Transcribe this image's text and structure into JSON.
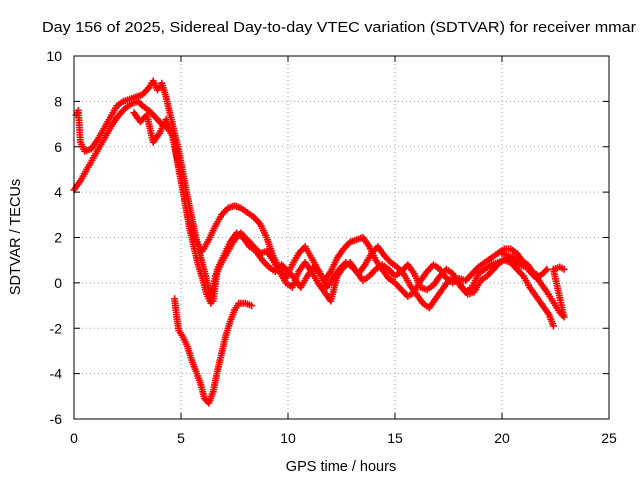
{
  "chart_data": {
    "type": "scatter",
    "title": "Day 156 of 2025, Sidereal Day-to-day VTEC variation (SDTVAR) for receiver mmar",
    "xlabel": "GPS time / hours",
    "ylabel": "SDTVAR / TECUs",
    "xlim": [
      0,
      25
    ],
    "ylim": [
      -6,
      10
    ],
    "xticks": [
      0,
      5,
      10,
      15,
      20,
      25
    ],
    "yticks": [
      -6,
      -4,
      -2,
      0,
      2,
      4,
      6,
      8,
      10
    ],
    "grid": true,
    "marker": "+",
    "series": [
      {
        "name": "trace-a",
        "color": "#ff0000",
        "points": [
          [
            0.0,
            4.1
          ],
          [
            0.3,
            4.5
          ],
          [
            0.6,
            5.0
          ],
          [
            0.9,
            5.5
          ],
          [
            1.2,
            6.0
          ],
          [
            1.5,
            6.5
          ],
          [
            1.8,
            7.0
          ],
          [
            2.1,
            7.4
          ],
          [
            2.4,
            7.7
          ],
          [
            2.7,
            7.9
          ],
          [
            3.0,
            8.0
          ],
          [
            3.2,
            7.8
          ],
          [
            3.5,
            7.6
          ],
          [
            3.8,
            7.3
          ],
          [
            4.1,
            7.0
          ],
          [
            4.4,
            6.8
          ],
          [
            4.7,
            6.3
          ],
          [
            4.9,
            5.0
          ],
          [
            5.1,
            4.0
          ],
          [
            5.3,
            3.0
          ],
          [
            5.5,
            2.3
          ],
          [
            5.8,
            1.7
          ],
          [
            6.0,
            1.4
          ],
          [
            6.3,
            1.9
          ],
          [
            6.6,
            2.5
          ],
          [
            6.9,
            3.0
          ],
          [
            7.2,
            3.3
          ],
          [
            7.5,
            3.4
          ],
          [
            7.8,
            3.3
          ],
          [
            8.1,
            3.1
          ],
          [
            8.4,
            2.9
          ],
          [
            8.7,
            2.6
          ],
          [
            9.0,
            2.0
          ],
          [
            9.3,
            1.2
          ],
          [
            9.6,
            0.6
          ],
          [
            9.9,
            0.2
          ],
          [
            10.2,
            0.8
          ],
          [
            10.5,
            1.3
          ],
          [
            10.8,
            1.6
          ],
          [
            11.1,
            1.1
          ],
          [
            11.4,
            0.6
          ],
          [
            11.7,
            0.1
          ],
          [
            12.0,
            0.5
          ],
          [
            12.3,
            1.1
          ],
          [
            12.6,
            1.5
          ],
          [
            12.9,
            1.8
          ],
          [
            13.2,
            1.9
          ],
          [
            13.5,
            2.0
          ],
          [
            13.8,
            1.6
          ],
          [
            14.1,
            1.0
          ],
          [
            14.4,
            0.6
          ],
          [
            14.7,
            0.2
          ],
          [
            15.0,
            0.0
          ],
          [
            15.3,
            -0.3
          ],
          [
            15.6,
            -0.6
          ],
          [
            15.9,
            -0.4
          ],
          [
            16.2,
            0.1
          ],
          [
            16.5,
            0.5
          ],
          [
            16.8,
            0.8
          ],
          [
            17.1,
            0.6
          ],
          [
            17.4,
            0.2
          ],
          [
            17.7,
            0.0
          ],
          [
            18.0,
            0.2
          ],
          [
            18.3,
            0.1
          ],
          [
            18.6,
            0.4
          ],
          [
            18.9,
            0.7
          ],
          [
            19.2,
            0.9
          ],
          [
            19.5,
            1.1
          ],
          [
            19.8,
            1.3
          ],
          [
            20.1,
            1.5
          ],
          [
            20.4,
            1.5
          ],
          [
            20.7,
            1.3
          ],
          [
            21.0,
            0.9
          ],
          [
            21.3,
            0.5
          ],
          [
            21.6,
            0.2
          ],
          [
            21.9,
            0.4
          ],
          [
            22.1,
            0.6
          ]
        ]
      },
      {
        "name": "trace-b",
        "color": "#ff0000",
        "points": [
          [
            0.1,
            7.4
          ],
          [
            0.2,
            7.6
          ],
          [
            0.3,
            6.2
          ],
          [
            0.5,
            5.8
          ],
          [
            0.8,
            5.9
          ],
          [
            1.1,
            6.3
          ],
          [
            1.4,
            6.8
          ],
          [
            1.7,
            7.3
          ],
          [
            2.0,
            7.8
          ],
          [
            2.3,
            8.0
          ],
          [
            2.6,
            8.1
          ],
          [
            2.9,
            8.2
          ],
          [
            3.2,
            8.3
          ],
          [
            3.5,
            8.6
          ],
          [
            3.7,
            8.9
          ],
          [
            3.9,
            8.5
          ],
          [
            4.1,
            8.8
          ],
          [
            4.3,
            8.2
          ],
          [
            4.5,
            7.4
          ],
          [
            4.7,
            6.6
          ],
          [
            4.9,
            5.8
          ],
          [
            5.1,
            4.8
          ],
          [
            5.3,
            3.8
          ],
          [
            5.5,
            2.9
          ],
          [
            5.7,
            2.0
          ],
          [
            5.9,
            1.2
          ],
          [
            6.1,
            0.5
          ],
          [
            6.3,
            -0.3
          ],
          [
            6.5,
            -0.8
          ],
          [
            6.7,
            0.6
          ],
          [
            7.0,
            1.2
          ],
          [
            7.3,
            1.8
          ],
          [
            7.6,
            2.2
          ],
          [
            7.9,
            2.0
          ],
          [
            8.2,
            1.6
          ],
          [
            8.5,
            1.4
          ],
          [
            8.8,
            1.0
          ],
          [
            9.1,
            0.7
          ],
          [
            9.4,
            0.5
          ],
          [
            9.7,
            0.8
          ],
          [
            10.0,
            0.5
          ],
          [
            10.3,
            0.2
          ],
          [
            10.6,
            -0.2
          ],
          [
            10.9,
            0.3
          ],
          [
            11.2,
            0.7
          ],
          [
            11.5,
            0.4
          ],
          [
            11.8,
            -0.2
          ],
          [
            12.1,
            0.2
          ],
          [
            12.4,
            0.6
          ],
          [
            12.7,
            0.9
          ],
          [
            13.0,
            0.7
          ],
          [
            13.3,
            0.4
          ],
          [
            13.6,
            0.8
          ],
          [
            13.9,
            1.3
          ],
          [
            14.2,
            1.6
          ],
          [
            14.5,
            1.2
          ],
          [
            14.8,
            0.9
          ],
          [
            15.1,
            0.7
          ],
          [
            15.4,
            0.4
          ],
          [
            15.7,
            -0.1
          ],
          [
            16.0,
            -0.5
          ],
          [
            16.3,
            -0.9
          ],
          [
            16.6,
            -1.1
          ],
          [
            16.9,
            -0.7
          ],
          [
            17.2,
            -0.3
          ],
          [
            17.5,
            0.1
          ],
          [
            17.8,
            0.2
          ],
          [
            18.1,
            -0.2
          ],
          [
            18.4,
            -0.5
          ],
          [
            18.7,
            -0.4
          ],
          [
            19.0,
            0.1
          ],
          [
            19.3,
            0.3
          ],
          [
            19.6,
            0.6
          ],
          [
            19.9,
            0.9
          ],
          [
            20.2,
            1.1
          ],
          [
            20.5,
            1.0
          ],
          [
            20.8,
            0.8
          ],
          [
            21.1,
            0.7
          ],
          [
            21.4,
            0.5
          ],
          [
            21.7,
            0.3
          ]
        ]
      },
      {
        "name": "trace-c",
        "color": "#ff0000",
        "points": [
          [
            2.8,
            7.5
          ],
          [
            3.1,
            7.1
          ],
          [
            3.4,
            7.4
          ],
          [
            3.7,
            6.2
          ],
          [
            4.0,
            6.6
          ],
          [
            4.3,
            7.2
          ],
          [
            4.6,
            6.5
          ],
          [
            4.8,
            5.5
          ],
          [
            5.0,
            4.6
          ],
          [
            5.2,
            3.5
          ],
          [
            5.4,
            2.4
          ],
          [
            5.6,
            1.6
          ],
          [
            5.8,
            0.8
          ],
          [
            6.0,
            0.2
          ],
          [
            6.2,
            -0.5
          ],
          [
            6.4,
            -0.9
          ],
          [
            6.6,
            0.3
          ],
          [
            6.9,
            0.9
          ],
          [
            7.2,
            1.4
          ],
          [
            7.5,
            1.9
          ],
          [
            7.8,
            2.2
          ],
          [
            8.1,
            1.9
          ],
          [
            8.4,
            1.6
          ],
          [
            8.7,
            1.3
          ],
          [
            9.0,
            1.4
          ],
          [
            9.3,
            1.0
          ],
          [
            9.6,
            0.5
          ],
          [
            9.9,
            0.0
          ],
          [
            10.2,
            -0.2
          ],
          [
            10.5,
            0.5
          ],
          [
            10.8,
            0.9
          ],
          [
            11.1,
            0.5
          ],
          [
            11.4,
            0.0
          ],
          [
            11.7,
            -0.4
          ],
          [
            12.0,
            -0.8
          ],
          [
            12.3,
            0.3
          ],
          [
            12.6,
            0.7
          ],
          [
            12.9,
            0.9
          ],
          [
            13.2,
            0.5
          ],
          [
            13.5,
            0.1
          ],
          [
            13.8,
            0.3
          ],
          [
            14.1,
            0.6
          ],
          [
            14.4,
            0.8
          ],
          [
            14.7,
            0.6
          ],
          [
            15.0,
            0.3
          ],
          [
            15.3,
            0.5
          ],
          [
            15.6,
            0.8
          ],
          [
            15.9,
            0.4
          ],
          [
            16.2,
            -0.2
          ],
          [
            16.5,
            -0.3
          ],
          [
            16.8,
            -0.1
          ],
          [
            17.1,
            0.3
          ],
          [
            17.4,
            0.6
          ],
          [
            17.7,
            0.4
          ],
          [
            18.0,
            0.0
          ],
          [
            18.3,
            -0.4
          ],
          [
            18.6,
            -0.2
          ],
          [
            18.9,
            0.4
          ],
          [
            19.2,
            0.6
          ],
          [
            19.5,
            0.8
          ],
          [
            19.8,
            0.9
          ],
          [
            20.1,
            1.0
          ],
          [
            20.4,
            0.9
          ],
          [
            20.7,
            0.6
          ],
          [
            21.0,
            0.3
          ],
          [
            21.3,
            -0.2
          ],
          [
            21.6,
            -0.6
          ],
          [
            21.9,
            -1.0
          ],
          [
            22.2,
            -1.4
          ],
          [
            22.4,
            -1.9
          ]
        ]
      },
      {
        "name": "trace-d",
        "color": "#ff0000",
        "points": [
          [
            4.7,
            -0.7
          ],
          [
            4.8,
            -1.5
          ],
          [
            4.9,
            -2.1
          ],
          [
            5.1,
            -2.4
          ],
          [
            5.3,
            -2.8
          ],
          [
            5.5,
            -3.4
          ],
          [
            5.7,
            -3.9
          ],
          [
            5.9,
            -4.4
          ],
          [
            6.1,
            -5.1
          ],
          [
            6.3,
            -5.3
          ],
          [
            6.5,
            -4.8
          ],
          [
            6.7,
            -3.9
          ],
          [
            6.9,
            -3.1
          ],
          [
            7.1,
            -2.3
          ],
          [
            7.3,
            -1.7
          ],
          [
            7.5,
            -1.2
          ],
          [
            7.7,
            -0.9
          ],
          [
            8.0,
            -0.9
          ],
          [
            8.3,
            -1.0
          ]
        ]
      },
      {
        "name": "trace-e",
        "color": "#ff0000",
        "points": [
          [
            20.0,
            1.3
          ],
          [
            20.3,
            1.2
          ],
          [
            20.6,
            1.1
          ],
          [
            20.9,
            1.0
          ],
          [
            21.2,
            0.8
          ],
          [
            21.5,
            0.4
          ],
          [
            21.8,
            0.0
          ],
          [
            22.1,
            -0.4
          ],
          [
            22.3,
            -0.7
          ],
          [
            22.5,
            -1.0
          ],
          [
            22.7,
            -1.3
          ],
          [
            22.9,
            -1.5
          ],
          [
            22.4,
            0.6
          ],
          [
            22.7,
            0.7
          ],
          [
            22.9,
            0.6
          ]
        ]
      }
    ]
  }
}
